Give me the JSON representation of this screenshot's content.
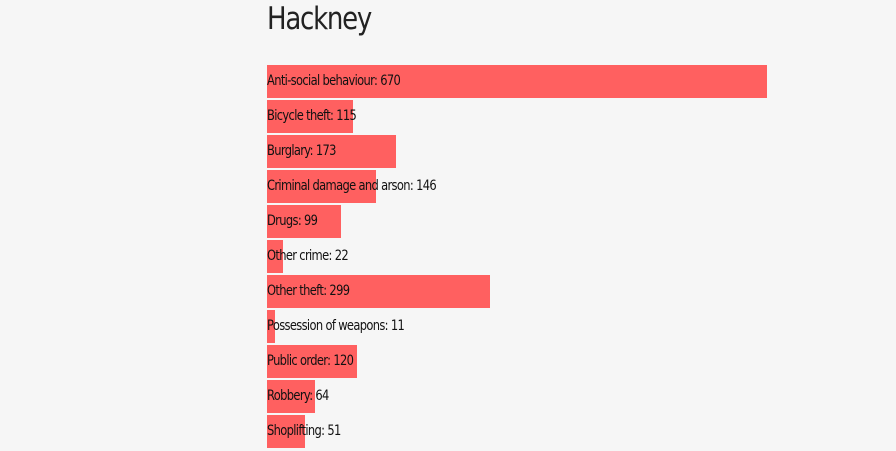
{
  "chart_data": {
    "type": "bar",
    "orientation": "horizontal",
    "title": "Hackney",
    "bar_color": "#ff6060",
    "background_color": "#f6f6f6",
    "categories": [
      "Anti-social behaviour",
      "Bicycle theft",
      "Burglary",
      "Criminal damage and arson",
      "Drugs",
      "Other crime",
      "Other theft",
      "Possession of weapons",
      "Public order",
      "Robbery",
      "Shoplifting"
    ],
    "values": [
      670,
      115,
      173,
      146,
      99,
      22,
      299,
      11,
      120,
      64,
      51
    ],
    "max_value": 670
  }
}
